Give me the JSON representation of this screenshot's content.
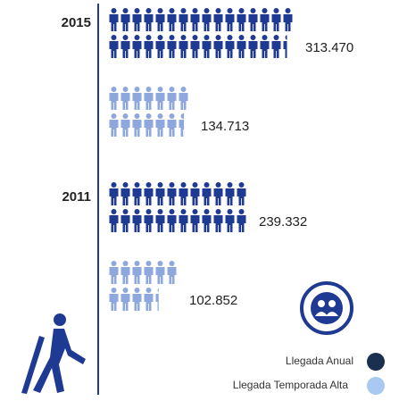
{
  "chart_data": {
    "type": "pictogram",
    "categories": [
      "2015",
      "2011"
    ],
    "series": [
      {
        "name": "Llegada Anual",
        "color": "#1f3a93",
        "values": [
          313470,
          239332
        ],
        "value_labels": [
          "313.470",
          "239.332"
        ]
      },
      {
        "name": "Llegada Temporada Alta",
        "color": "#8ea7dd",
        "values": [
          134713,
          102852
        ],
        "value_labels": [
          "134.713",
          "102.852"
        ]
      }
    ],
    "legend_colors": [
      "#1b2f4e",
      "#a9c9f0"
    ]
  }
}
